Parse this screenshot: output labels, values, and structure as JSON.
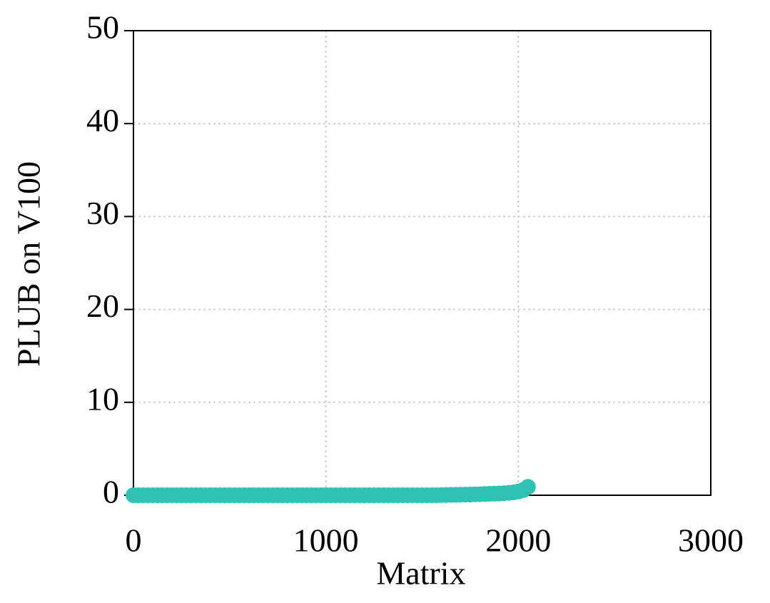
{
  "chart_data": {
    "type": "scatter",
    "x_label": "Matrix",
    "y_label": "PLUB on V100",
    "xlim": [
      0,
      3000
    ],
    "xticks": [
      0,
      1000,
      2000,
      3000
    ],
    "ylim": [
      0,
      50
    ],
    "yticks": [
      0,
      10,
      20,
      30,
      40,
      50
    ],
    "grid": true,
    "color": "#2fc2b2",
    "x": [
      0,
      25,
      50,
      75,
      100,
      125,
      150,
      175,
      200,
      225,
      250,
      275,
      300,
      325,
      350,
      375,
      400,
      425,
      450,
      475,
      500,
      525,
      550,
      575,
      600,
      625,
      650,
      675,
      700,
      725,
      750,
      775,
      800,
      825,
      850,
      875,
      900,
      925,
      950,
      975,
      1000,
      1025,
      1050,
      1075,
      1100,
      1125,
      1150,
      1175,
      1200,
      1225,
      1250,
      1275,
      1300,
      1325,
      1350,
      1375,
      1400,
      1425,
      1450,
      1475,
      1500,
      1525,
      1550,
      1575,
      1600,
      1625,
      1650,
      1675,
      1700,
      1725,
      1750,
      1775,
      1800,
      1825,
      1850,
      1875,
      1900,
      1925,
      1950,
      1975,
      2000,
      2025,
      2050
    ],
    "values": [
      0,
      0,
      0,
      0,
      0,
      0,
      0,
      0,
      0,
      0,
      0,
      0,
      0,
      0,
      0,
      0,
      0,
      0,
      0,
      0,
      0,
      0,
      0,
      0,
      0,
      0,
      0,
      0,
      0,
      0,
      0,
      0,
      0,
      0,
      0,
      0,
      0,
      0,
      0,
      0,
      0,
      0,
      0,
      0,
      0,
      0,
      0,
      0,
      0,
      0,
      0,
      0,
      0,
      0,
      0,
      0,
      0,
      0,
      0,
      0,
      0,
      0,
      0,
      0,
      0.02,
      0.03,
      0.04,
      0.05,
      0.06,
      0.07,
      0.08,
      0.1,
      0.11,
      0.13,
      0.15,
      0.17,
      0.19,
      0.22,
      0.26,
      0.31,
      0.4,
      0.55,
      0.9
    ]
  }
}
